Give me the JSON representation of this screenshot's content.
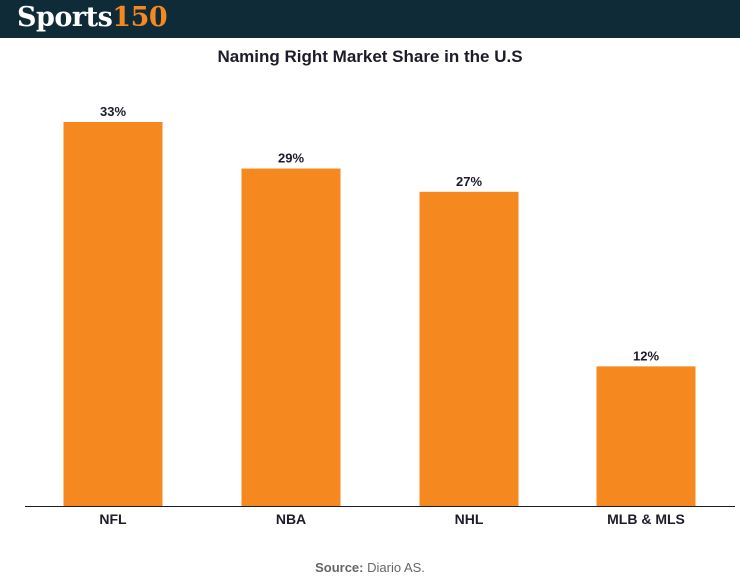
{
  "header": {
    "logo_word": "Sports",
    "logo_number": "150"
  },
  "colors": {
    "header_bg": "#0f2b38",
    "bar": "#f5891f",
    "text": "#1c1c2a"
  },
  "chart_data": {
    "type": "bar",
    "title": "Naming Right Market Share in the U.S",
    "categories": [
      "NFL",
      "NBA",
      "NHL",
      "MLB & MLS"
    ],
    "values": [
      33,
      29,
      27,
      12
    ],
    "value_labels": [
      "33%",
      "29%",
      "27%",
      "12%"
    ],
    "unit": "%",
    "xlabel": "",
    "ylabel": "",
    "ylim": [
      0,
      33
    ],
    "grid": false,
    "legend": "none"
  },
  "source": {
    "label": "Source:",
    "text": "Diario AS."
  }
}
